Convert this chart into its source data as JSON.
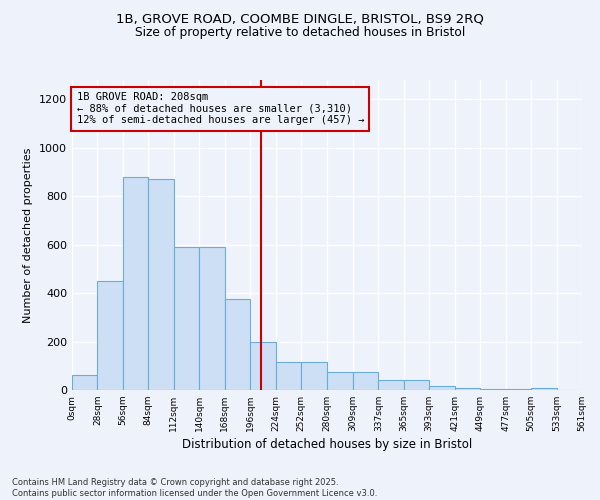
{
  "title_line1": "1B, GROVE ROAD, COOMBE DINGLE, BRISTOL, BS9 2RQ",
  "title_line2": "Size of property relative to detached houses in Bristol",
  "xlabel": "Distribution of detached houses by size in Bristol",
  "ylabel": "Number of detached properties",
  "bar_color": "#ccdff5",
  "bar_edge_color": "#6aaed6",
  "background_color": "#eef2fb",
  "vline_x": 208,
  "vline_color": "#cc0000",
  "annotation_text": "1B GROVE ROAD: 208sqm\n← 88% of detached houses are smaller (3,310)\n12% of semi-detached houses are larger (457) →",
  "annotation_box_color": "#cc0000",
  "bin_edges": [
    0,
    28,
    56,
    84,
    112,
    140,
    168,
    196,
    224,
    252,
    280,
    309,
    337,
    365,
    393,
    421,
    449,
    477,
    505,
    533,
    561
  ],
  "bar_heights": [
    60,
    450,
    880,
    870,
    590,
    590,
    375,
    200,
    115,
    115,
    75,
    75,
    40,
    40,
    15,
    10,
    5,
    5,
    10,
    0
  ],
  "ylim": [
    0,
    1280
  ],
  "yticks": [
    0,
    200,
    400,
    600,
    800,
    1000,
    1200
  ],
  "footnote": "Contains HM Land Registry data © Crown copyright and database right 2025.\nContains public sector information licensed under the Open Government Licence v3.0.",
  "tick_labels": [
    "0sqm",
    "28sqm",
    "56sqm",
    "84sqm",
    "112sqm",
    "140sqm",
    "168sqm",
    "196sqm",
    "224sqm",
    "252sqm",
    "280sqm",
    "309sqm",
    "337sqm",
    "365sqm",
    "393sqm",
    "421sqm",
    "449sqm",
    "477sqm",
    "505sqm",
    "533sqm",
    "561sqm"
  ]
}
